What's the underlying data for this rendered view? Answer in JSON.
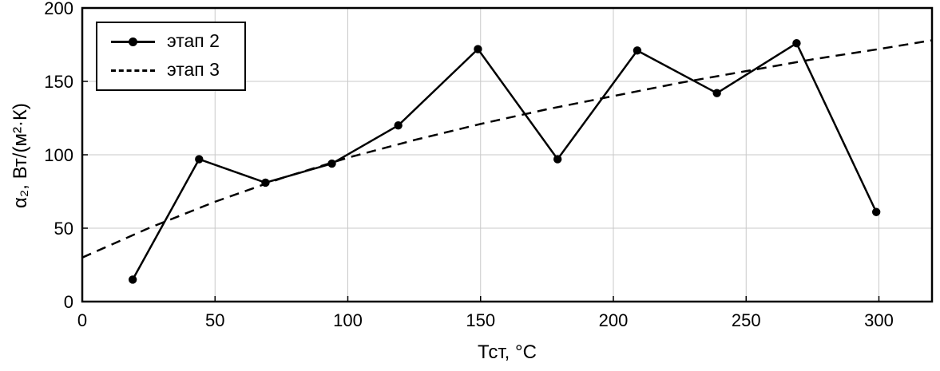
{
  "chart_data": {
    "type": "line",
    "xlabel": "Тст, °C",
    "ylabel": "α₂, Вт/(м²·К)",
    "xlim": [
      0,
      320
    ],
    "ylim": [
      0,
      200
    ],
    "xticks": [
      0,
      50,
      100,
      150,
      200,
      250,
      300
    ],
    "yticks": [
      0,
      50,
      100,
      150,
      200
    ],
    "grid": true,
    "legend": {
      "position": "top-left",
      "border": true
    },
    "colors": {
      "line": "#000000",
      "grid": "#c9c9c9",
      "border": "#000000",
      "background": "#ffffff"
    },
    "series": [
      {
        "name": "этап 2",
        "style": "solid",
        "marker": "circle",
        "x": [
          19,
          44,
          69,
          94,
          119,
          149,
          179,
          209,
          239,
          269,
          299
        ],
        "y": [
          15,
          97,
          81,
          94,
          120,
          172,
          97,
          171,
          142,
          176,
          61
        ]
      },
      {
        "name": "этап 3",
        "style": "dashed",
        "marker": "none",
        "x": [
          0,
          25,
          50,
          75,
          100,
          125,
          150,
          175,
          200,
          225,
          250,
          275,
          300,
          320
        ],
        "y": [
          30,
          50,
          68,
          84,
          98,
          110,
          121,
          131,
          140,
          149,
          157,
          165,
          172,
          178
        ]
      }
    ]
  }
}
